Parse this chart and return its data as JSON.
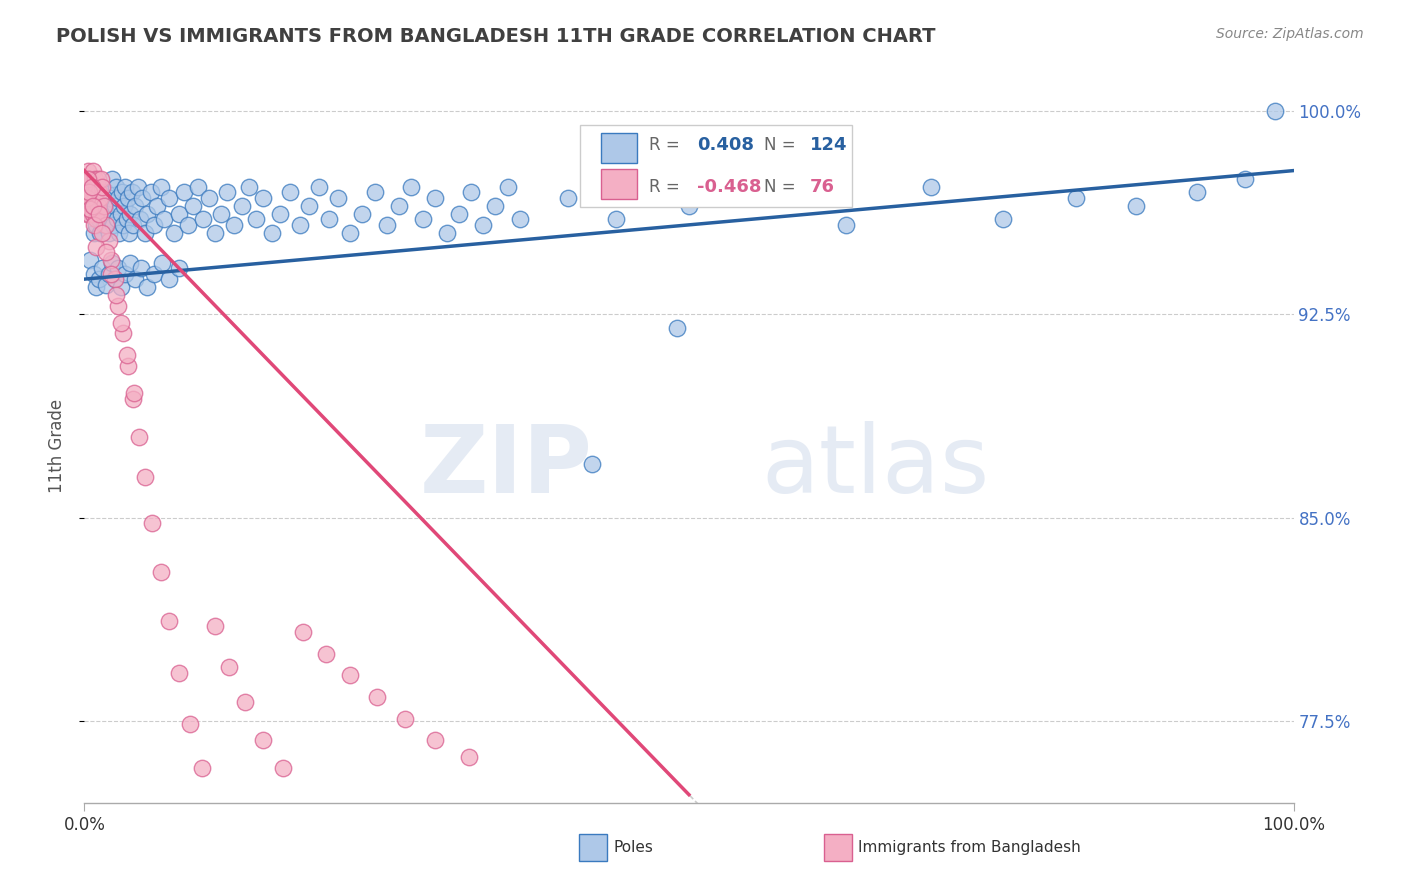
{
  "title": "POLISH VS IMMIGRANTS FROM BANGLADESH 11TH GRADE CORRELATION CHART",
  "source_text": "Source: ZipAtlas.com",
  "ylabel": "11th Grade",
  "watermark": "ZIPatlas",
  "xlim": [
    0.0,
    1.0
  ],
  "ylim": [
    0.745,
    1.008
  ],
  "ytick_labels": [
    "77.5%",
    "85.0%",
    "92.5%",
    "100.0%"
  ],
  "ytick_values": [
    0.775,
    0.85,
    0.925,
    1.0
  ],
  "legend_r_blue": "0.408",
  "legend_n_blue": "124",
  "legend_r_pink": "-0.468",
  "legend_n_pink": "76",
  "legend_label_blue": "Poles",
  "legend_label_pink": "Immigrants from Bangladesh",
  "blue_fill": "#aec8e8",
  "blue_edge": "#3a7abf",
  "pink_fill": "#f4afc4",
  "pink_edge": "#d96090",
  "blue_line_color": "#2860a0",
  "pink_line_color": "#e04878",
  "blue_scatter_x": [
    0.003,
    0.005,
    0.006,
    0.007,
    0.008,
    0.009,
    0.01,
    0.011,
    0.012,
    0.013,
    0.014,
    0.015,
    0.016,
    0.017,
    0.018,
    0.019,
    0.02,
    0.021,
    0.022,
    0.023,
    0.024,
    0.025,
    0.026,
    0.027,
    0.028,
    0.029,
    0.03,
    0.031,
    0.032,
    0.033,
    0.034,
    0.035,
    0.036,
    0.037,
    0.038,
    0.039,
    0.04,
    0.042,
    0.044,
    0.046,
    0.048,
    0.05,
    0.052,
    0.055,
    0.058,
    0.06,
    0.063,
    0.066,
    0.07,
    0.074,
    0.078,
    0.082,
    0.086,
    0.09,
    0.094,
    0.098,
    0.103,
    0.108,
    0.113,
    0.118,
    0.124,
    0.13,
    0.136,
    0.142,
    0.148,
    0.155,
    0.162,
    0.17,
    0.178,
    0.186,
    0.194,
    0.202,
    0.21,
    0.22,
    0.23,
    0.24,
    0.25,
    0.26,
    0.27,
    0.28,
    0.29,
    0.3,
    0.31,
    0.32,
    0.33,
    0.34,
    0.35,
    0.36,
    0.005,
    0.008,
    0.01,
    0.012,
    0.015,
    0.018,
    0.02,
    0.023,
    0.025,
    0.028,
    0.03,
    0.034,
    0.038,
    0.042,
    0.047,
    0.052,
    0.058,
    0.064,
    0.07,
    0.078,
    0.4,
    0.44,
    0.5,
    0.56,
    0.63,
    0.7,
    0.76,
    0.82,
    0.87,
    0.92,
    0.96,
    0.985,
    0.42,
    0.49
  ],
  "blue_scatter_y": [
    0.97,
    0.965,
    0.962,
    0.968,
    0.955,
    0.972,
    0.958,
    0.965,
    0.96,
    0.955,
    0.968,
    0.962,
    0.958,
    0.965,
    0.97,
    0.962,
    0.955,
    0.968,
    0.96,
    0.975,
    0.958,
    0.965,
    0.972,
    0.96,
    0.968,
    0.955,
    0.962,
    0.97,
    0.958,
    0.965,
    0.972,
    0.96,
    0.968,
    0.955,
    0.962,
    0.97,
    0.958,
    0.965,
    0.972,
    0.96,
    0.968,
    0.955,
    0.962,
    0.97,
    0.958,
    0.965,
    0.972,
    0.96,
    0.968,
    0.955,
    0.962,
    0.97,
    0.958,
    0.965,
    0.972,
    0.96,
    0.968,
    0.955,
    0.962,
    0.97,
    0.958,
    0.965,
    0.972,
    0.96,
    0.968,
    0.955,
    0.962,
    0.97,
    0.958,
    0.965,
    0.972,
    0.96,
    0.968,
    0.955,
    0.962,
    0.97,
    0.958,
    0.965,
    0.972,
    0.96,
    0.968,
    0.955,
    0.962,
    0.97,
    0.958,
    0.965,
    0.972,
    0.96,
    0.945,
    0.94,
    0.935,
    0.938,
    0.942,
    0.936,
    0.94,
    0.944,
    0.938,
    0.942,
    0.935,
    0.94,
    0.944,
    0.938,
    0.942,
    0.935,
    0.94,
    0.944,
    0.938,
    0.942,
    0.968,
    0.96,
    0.965,
    0.97,
    0.958,
    0.972,
    0.96,
    0.968,
    0.965,
    0.97,
    0.975,
    1.0,
    0.87,
    0.92
  ],
  "pink_scatter_x": [
    0.001,
    0.001,
    0.002,
    0.002,
    0.003,
    0.003,
    0.003,
    0.004,
    0.004,
    0.004,
    0.005,
    0.005,
    0.005,
    0.006,
    0.006,
    0.007,
    0.007,
    0.007,
    0.008,
    0.008,
    0.009,
    0.009,
    0.01,
    0.01,
    0.011,
    0.011,
    0.012,
    0.012,
    0.013,
    0.014,
    0.015,
    0.016,
    0.018,
    0.02,
    0.022,
    0.025,
    0.028,
    0.032,
    0.036,
    0.04,
    0.045,
    0.05,
    0.056,
    0.063,
    0.07,
    0.078,
    0.087,
    0.097,
    0.108,
    0.12,
    0.133,
    0.148,
    0.164,
    0.181,
    0.2,
    0.22,
    0.242,
    0.265,
    0.29,
    0.318,
    0.002,
    0.003,
    0.004,
    0.005,
    0.006,
    0.007,
    0.008,
    0.01,
    0.012,
    0.015,
    0.018,
    0.022,
    0.026,
    0.03,
    0.035,
    0.041
  ],
  "pink_scatter_y": [
    0.975,
    0.968,
    0.972,
    0.962,
    0.978,
    0.97,
    0.964,
    0.975,
    0.968,
    0.962,
    0.975,
    0.97,
    0.964,
    0.972,
    0.965,
    0.978,
    0.968,
    0.962,
    0.972,
    0.965,
    0.975,
    0.968,
    0.972,
    0.96,
    0.975,
    0.965,
    0.97,
    0.962,
    0.968,
    0.975,
    0.972,
    0.965,
    0.958,
    0.952,
    0.945,
    0.938,
    0.928,
    0.918,
    0.906,
    0.894,
    0.88,
    0.865,
    0.848,
    0.83,
    0.812,
    0.793,
    0.774,
    0.758,
    0.81,
    0.795,
    0.782,
    0.768,
    0.758,
    0.808,
    0.8,
    0.792,
    0.784,
    0.776,
    0.768,
    0.762,
    0.968,
    0.975,
    0.97,
    0.964,
    0.972,
    0.965,
    0.958,
    0.95,
    0.962,
    0.955,
    0.948,
    0.94,
    0.932,
    0.922,
    0.91,
    0.896
  ],
  "blue_trend_x": [
    0.0,
    1.0
  ],
  "blue_trend_y": [
    0.938,
    0.978
  ],
  "pink_trend_x": [
    0.0,
    0.5
  ],
  "pink_trend_y": [
    0.978,
    0.748
  ],
  "grid_color": "#cccccc",
  "bg_color": "#ffffff",
  "title_color": "#404040",
  "ylabel_color": "#555555",
  "right_tick_color": "#4472c4",
  "source_color": "#888888",
  "legend_text_color": "#666666"
}
